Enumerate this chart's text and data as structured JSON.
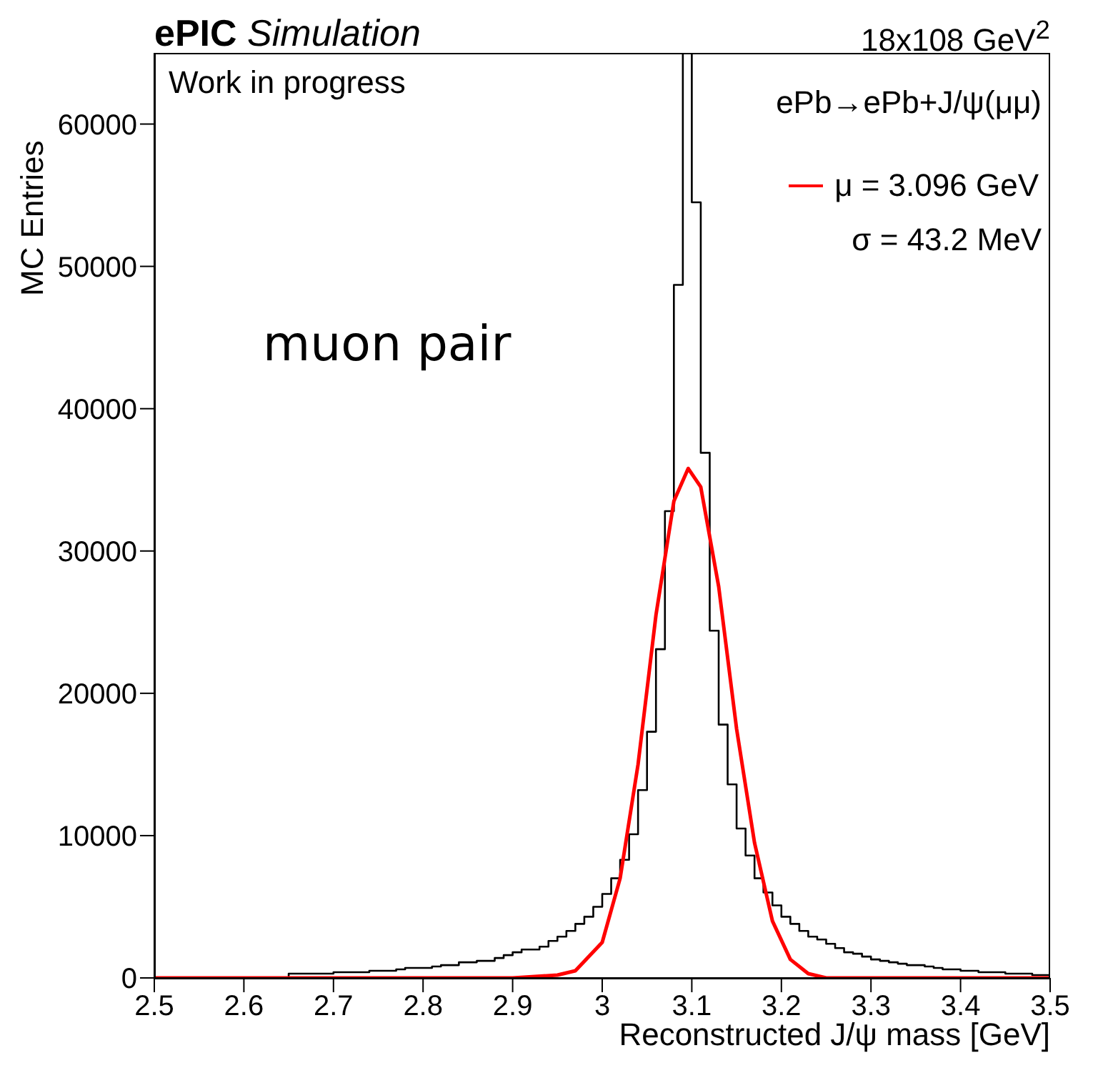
{
  "chart_data": {
    "type": "histogram",
    "title": "ePIC Simulation",
    "subtitle": "18x108 GeV$^{2}$",
    "xlabel": "Reconstructed J/ψ mass [GeV]",
    "ylabel": "MC Entries",
    "annotations": [
      "Work in progress",
      "ePb→ePb+J/ψ(μμ)",
      "σ = 43.2 MeV",
      "muon pair"
    ],
    "bins": [
      2.5,
      2.51,
      2.52,
      2.53,
      2.54,
      2.55,
      2.56,
      2.57,
      2.58,
      2.59,
      2.6,
      2.61,
      2.62,
      2.63,
      2.64,
      2.65,
      2.66,
      2.67,
      2.68,
      2.69,
      2.7,
      2.71,
      2.72,
      2.73,
      2.74,
      2.75,
      2.76,
      2.77,
      2.78,
      2.79,
      2.8,
      2.81,
      2.82,
      2.83,
      2.84,
      2.85,
      2.86,
      2.87,
      2.88,
      2.89,
      2.9,
      2.91,
      2.92,
      2.93,
      2.94,
      2.95,
      2.96,
      2.97,
      2.98,
      2.99,
      3.0,
      3.01,
      3.02,
      3.03,
      3.04,
      3.05,
      3.06,
      3.07,
      3.08,
      3.09,
      3.1,
      3.11,
      3.12,
      3.13,
      3.14,
      3.15,
      3.16,
      3.17,
      3.18,
      3.19,
      3.2,
      3.21,
      3.22,
      3.23,
      3.24,
      3.25,
      3.26,
      3.27,
      3.28,
      3.29,
      3.3,
      3.31,
      3.32,
      3.33,
      3.34,
      3.35,
      3.36,
      3.37,
      3.38,
      3.39,
      3.4,
      3.41,
      3.42,
      3.43,
      3.44,
      3.45,
      3.46,
      3.47,
      3.48,
      3.49,
      3.5
    ],
    "series": [
      {
        "color": "#000000",
        "values": [
          0,
          0,
          0,
          0,
          0,
          0,
          0,
          0,
          0,
          0,
          0,
          0,
          0,
          0,
          0,
          300,
          300,
          300,
          300,
          300,
          400,
          400,
          400,
          400,
          500,
          500,
          500,
          600,
          700,
          700,
          700,
          800,
          900,
          900,
          1100,
          1100,
          1200,
          1200,
          1400,
          1600,
          1800,
          2000,
          2000,
          2200,
          2600,
          2900,
          3300,
          3800,
          4300,
          5000,
          5900,
          7000,
          8300,
          10100,
          13200,
          17300,
          23100,
          32800,
          48700,
          65000,
          54500,
          36900,
          24400,
          17800,
          13600,
          10500,
          8600,
          7000,
          6000,
          5100,
          4300,
          3800,
          3300,
          2900,
          2700,
          2400,
          2100,
          1800,
          1700,
          1500,
          1300,
          1200,
          1100,
          1000,
          900,
          900,
          800,
          700,
          600,
          600,
          500,
          500,
          400,
          400,
          400,
          300,
          300,
          300,
          200,
          200
        ]
      },
      {
        "type": "line",
        "name": "μ = 3.096 GeV",
        "color": "#ff0000",
        "x": [
          2.5,
          2.9,
          2.95,
          2.97,
          3.0,
          3.02,
          3.04,
          3.06,
          3.08,
          3.096,
          3.11,
          3.13,
          3.15,
          3.17,
          3.19,
          3.21,
          3.23,
          3.25,
          3.3,
          3.5
        ],
        "values": [
          0,
          0,
          200,
          500,
          2500,
          7000,
          15000,
          25500,
          33500,
          35800,
          34500,
          27500,
          17500,
          9500,
          4000,
          1300,
          300,
          0,
          0,
          0
        ]
      }
    ],
    "xlim": [
      2.5,
      3.5
    ],
    "xticks": [
      2.5,
      2.6,
      2.7,
      2.8,
      2.9,
      3,
      3.1,
      3.2,
      3.3,
      3.4,
      3.5
    ],
    "ylim": [
      0,
      65000
    ],
    "yticks": [
      0,
      10000,
      20000,
      30000,
      40000,
      50000,
      60000
    ],
    "legend": "top right",
    "grid": false
  }
}
